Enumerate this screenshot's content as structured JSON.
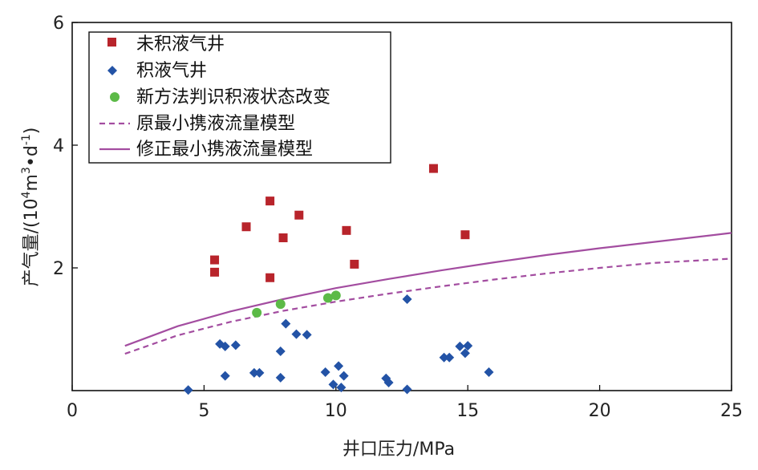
{
  "chart_data": {
    "type": "scatter",
    "xlabel": "井口压力/MPa",
    "ylabel_main": "产气量/(10",
    "ylabel_sup1": "4",
    "ylabel_mid": "m",
    "ylabel_sup2": "3",
    "ylabel_tail1": "•d",
    "ylabel_sup3": "-1",
    "ylabel_tail2": ")",
    "xlim": [
      0,
      25
    ],
    "ylim": [
      0,
      6
    ],
    "xticks": [
      0,
      5,
      10,
      15,
      20,
      25
    ],
    "yticks": [
      2,
      4,
      6
    ],
    "xtick_labels": [
      "0",
      "5",
      "10",
      "15",
      "20",
      "25"
    ],
    "ytick_labels": [
      "2",
      "4",
      "6"
    ],
    "legend_position": "top-left",
    "series": [
      {
        "name": "未积液气井",
        "kind": "scatter",
        "marker": "square",
        "color": "#b8242b",
        "points": [
          [
            5.4,
            2.13
          ],
          [
            5.4,
            1.93
          ],
          [
            6.6,
            2.67
          ],
          [
            7.5,
            3.09
          ],
          [
            7.5,
            1.84
          ],
          [
            8.0,
            2.49
          ],
          [
            8.6,
            2.86
          ],
          [
            10.4,
            2.61
          ],
          [
            10.7,
            2.06
          ],
          [
            13.7,
            3.62
          ],
          [
            14.9,
            2.54
          ]
        ]
      },
      {
        "name": "积液气井",
        "kind": "scatter",
        "marker": "diamond",
        "color": "#2353a6",
        "points": [
          [
            4.4,
            0.01
          ],
          [
            5.6,
            0.76
          ],
          [
            5.8,
            0.72
          ],
          [
            5.8,
            0.24
          ],
          [
            6.2,
            0.74
          ],
          [
            6.9,
            0.29
          ],
          [
            7.1,
            0.29
          ],
          [
            7.9,
            0.64
          ],
          [
            7.9,
            0.21
          ],
          [
            8.1,
            1.09
          ],
          [
            8.5,
            0.92
          ],
          [
            8.9,
            0.91
          ],
          [
            9.6,
            0.3
          ],
          [
            9.9,
            0.1
          ],
          [
            10.1,
            0.4
          ],
          [
            10.2,
            0.05
          ],
          [
            10.3,
            0.24
          ],
          [
            11.9,
            0.2
          ],
          [
            12.0,
            0.13
          ],
          [
            12.7,
            0.02
          ],
          [
            12.7,
            1.49
          ],
          [
            14.1,
            0.54
          ],
          [
            14.3,
            0.54
          ],
          [
            14.7,
            0.72
          ],
          [
            14.9,
            0.61
          ],
          [
            15.0,
            0.73
          ],
          [
            15.8,
            0.3
          ]
        ]
      },
      {
        "name": "新方法判识积液状态改变",
        "kind": "scatter",
        "marker": "circle",
        "color": "#5cba47",
        "points": [
          [
            7.0,
            1.27
          ],
          [
            7.9,
            1.41
          ],
          [
            9.7,
            1.51
          ],
          [
            10.0,
            1.55
          ]
        ]
      },
      {
        "name": "原最小携液流量模型",
        "kind": "line",
        "dash": true,
        "color": "#a34da0",
        "points": [
          [
            2,
            0.6
          ],
          [
            4,
            0.9
          ],
          [
            6,
            1.12
          ],
          [
            8,
            1.3
          ],
          [
            10,
            1.45
          ],
          [
            12,
            1.58
          ],
          [
            14,
            1.7
          ],
          [
            16,
            1.81
          ],
          [
            18,
            1.91
          ],
          [
            20,
            2.0
          ],
          [
            22,
            2.08
          ],
          [
            25,
            2.15
          ]
        ]
      },
      {
        "name": "修正最小携液流量模型",
        "kind": "line",
        "dash": false,
        "color": "#a34da0",
        "points": [
          [
            2,
            0.73
          ],
          [
            4,
            1.05
          ],
          [
            6,
            1.29
          ],
          [
            8,
            1.49
          ],
          [
            10,
            1.67
          ],
          [
            12,
            1.82
          ],
          [
            14,
            1.96
          ],
          [
            16,
            2.09
          ],
          [
            18,
            2.21
          ],
          [
            20,
            2.32
          ],
          [
            22,
            2.42
          ],
          [
            25,
            2.57
          ]
        ]
      }
    ]
  }
}
